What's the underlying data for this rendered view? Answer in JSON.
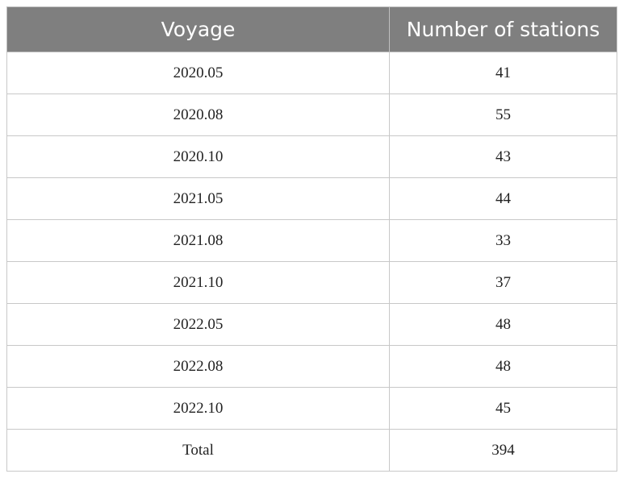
{
  "table": {
    "header": [
      "Voyage",
      "Number of stations"
    ],
    "rows": [
      [
        "2020.05",
        41
      ],
      [
        "2020.08",
        55
      ],
      [
        "2020.10",
        43
      ],
      [
        "2021.05",
        44
      ],
      [
        "2021.08",
        33
      ],
      [
        "2021.10",
        37
      ],
      [
        "2022.05",
        48
      ],
      [
        "2022.08",
        48
      ],
      [
        "2022.10",
        45
      ],
      [
        "Total",
        394
      ]
    ]
  }
}
